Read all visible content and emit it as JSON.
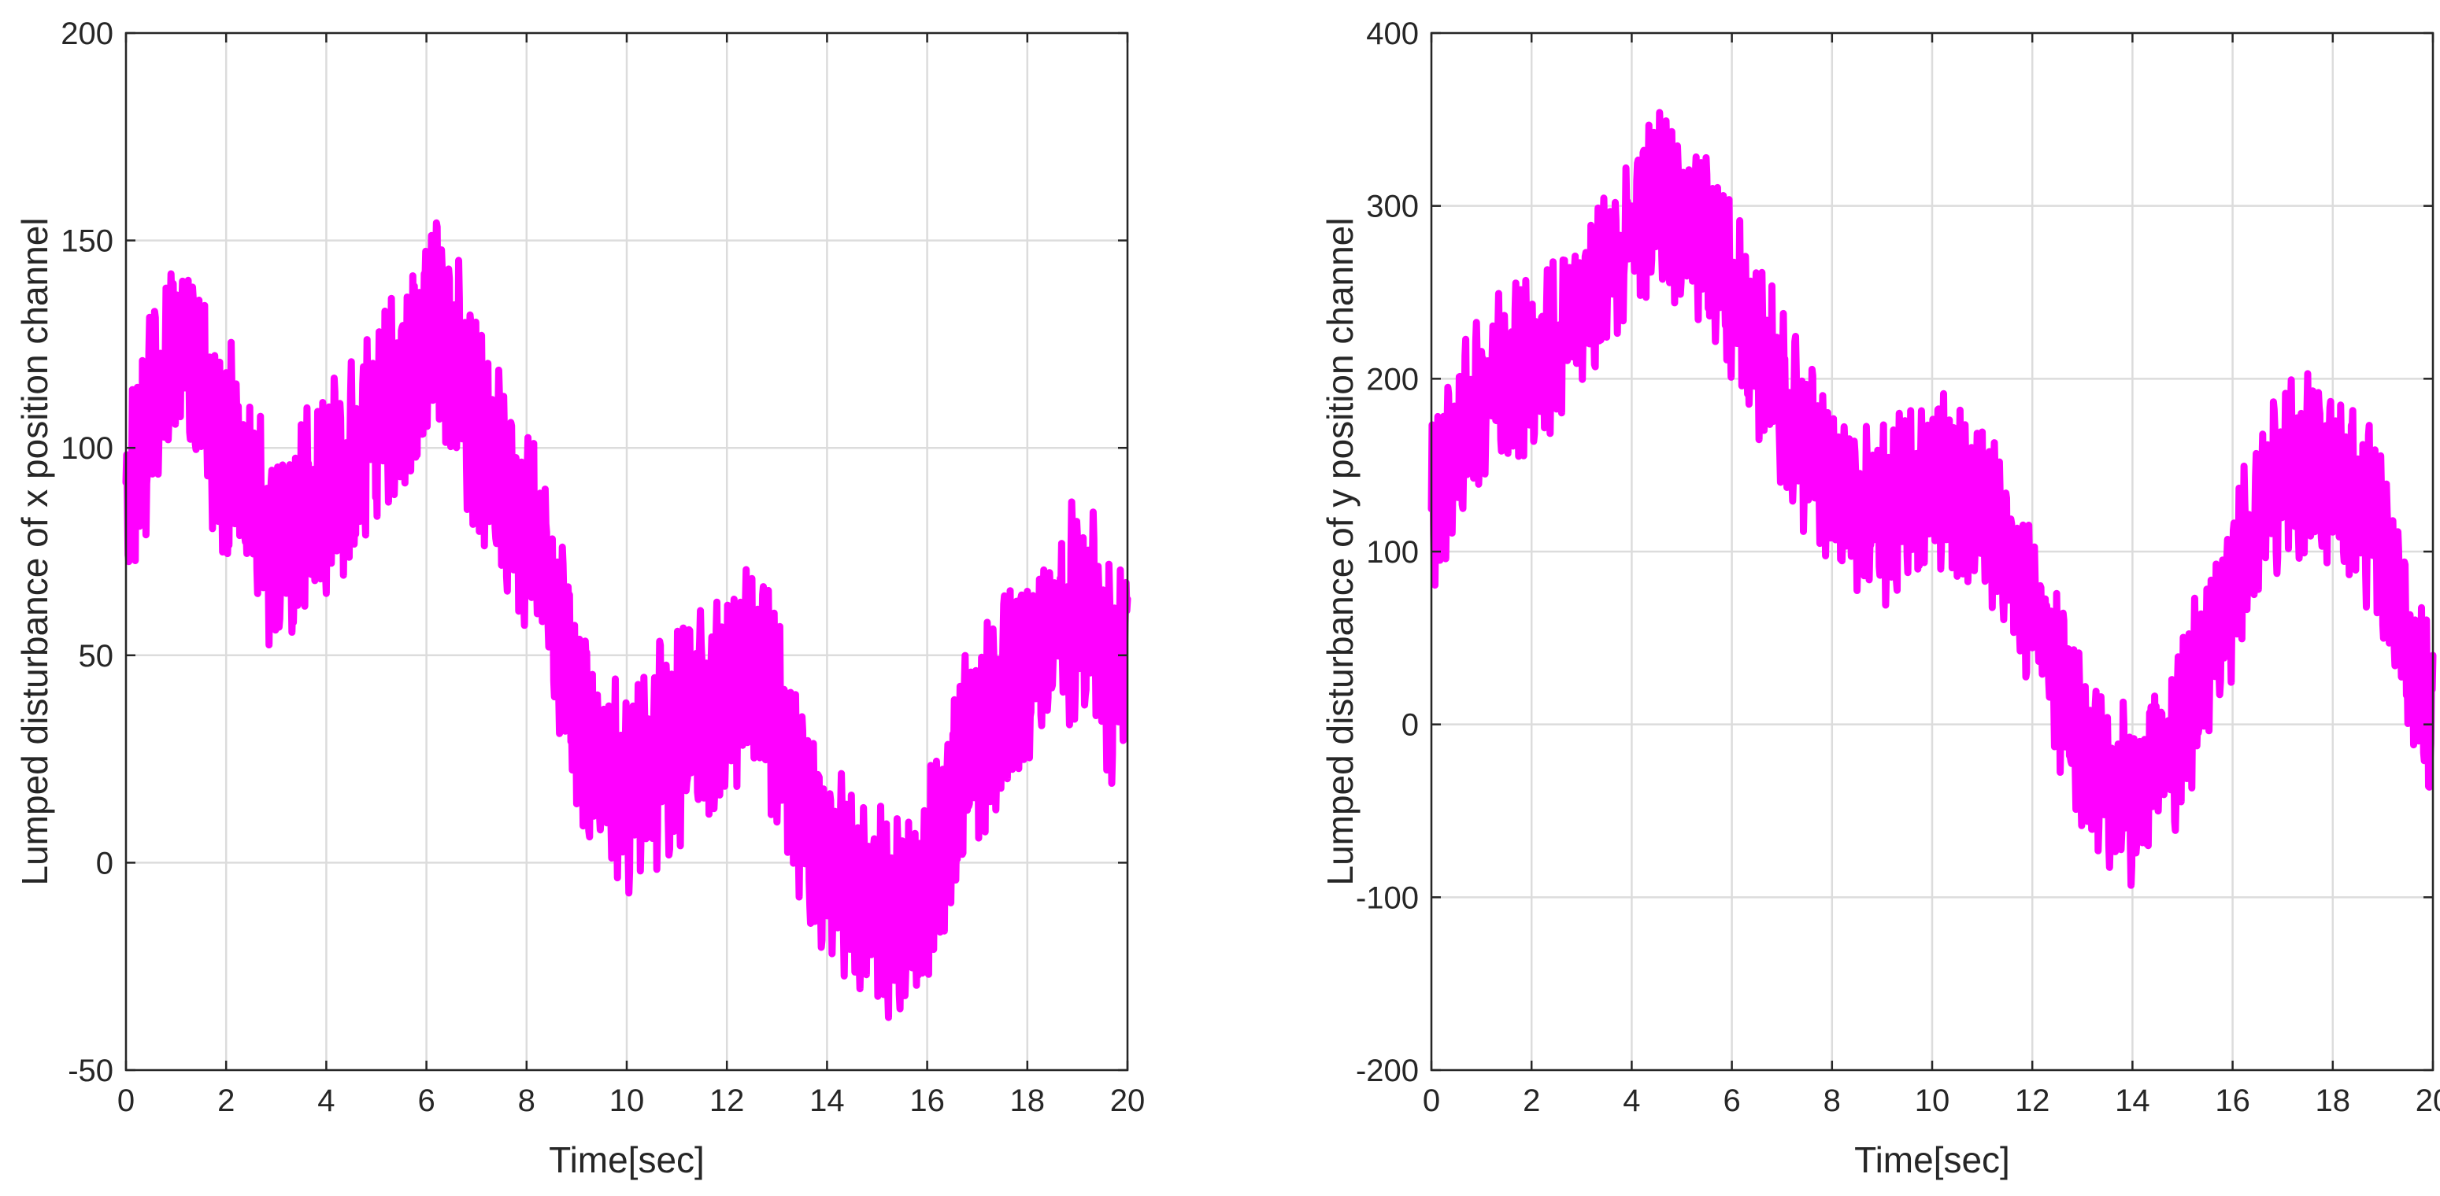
{
  "colors": {
    "series": "#ff00ff",
    "grid": "#dcdcdc",
    "axis": "#262626"
  },
  "chart_data": [
    {
      "type": "line",
      "title": "",
      "xlabel": "Time[sec]",
      "ylabel": "Lumped disturbance of x position channel",
      "xlim": [
        0,
        20
      ],
      "ylim": [
        -50,
        200
      ],
      "xticks": [
        0,
        2,
        4,
        6,
        8,
        10,
        12,
        14,
        16,
        18,
        20
      ],
      "yticks": [
        -50,
        0,
        50,
        100,
        150,
        200
      ],
      "grid": true,
      "legend": "none",
      "series": [
        {
          "color": "#ff00ff",
          "x": [
            0,
            0.25,
            0.5,
            0.75,
            1,
            1.25,
            1.5,
            1.75,
            2,
            2.25,
            2.5,
            2.75,
            3,
            3.25,
            3.5,
            3.75,
            4,
            4.25,
            4.5,
            4.75,
            5,
            5.25,
            5.5,
            5.75,
            6,
            6.25,
            6.5,
            6.75,
            7,
            7.25,
            7.5,
            7.75,
            8,
            8.25,
            8.5,
            8.75,
            9,
            9.25,
            9.5,
            9.75,
            10,
            10.25,
            10.5,
            10.75,
            11,
            11.25,
            11.5,
            11.75,
            12,
            12.25,
            12.5,
            12.75,
            13,
            13.25,
            13.5,
            13.75,
            14,
            14.25,
            14.5,
            14.75,
            15,
            15.25,
            15.5,
            15.75,
            16,
            16.25,
            16.5,
            16.75,
            17,
            17.25,
            17.5,
            17.75,
            18,
            18.25,
            18.5,
            18.75,
            19,
            19.25,
            19.5,
            19.75,
            20
          ],
          "y": [
            85,
            95,
            110,
            120,
            125,
            122,
            115,
            105,
            100,
            95,
            88,
            78,
            72,
            75,
            80,
            85,
            88,
            92,
            95,
            100,
            108,
            112,
            115,
            118,
            128,
            132,
            125,
            115,
            105,
            100,
            95,
            88,
            82,
            75,
            65,
            50,
            40,
            30,
            22,
            18,
            18,
            20,
            25,
            28,
            30,
            35,
            38,
            40,
            42,
            45,
            48,
            42,
            35,
            25,
            15,
            8,
            2,
            -2,
            -5,
            -8,
            -10,
            -12,
            -15,
            -12,
            -5,
            5,
            15,
            25,
            30,
            35,
            40,
            45,
            48,
            52,
            55,
            58,
            62,
            60,
            50,
            45,
            55
          ],
          "noise_amplitude": 28
        }
      ]
    },
    {
      "type": "line",
      "title": "",
      "xlabel": "Time[sec]",
      "ylabel": "Lumped disturbance of y position channel",
      "xlim": [
        0,
        20
      ],
      "ylim": [
        -200,
        400
      ],
      "xticks": [
        0,
        2,
        4,
        6,
        8,
        10,
        12,
        14,
        16,
        18,
        20
      ],
      "yticks": [
        -200,
        -100,
        0,
        100,
        200,
        300,
        400
      ],
      "grid": true,
      "legend": "none",
      "series": [
        {
          "color": "#ff00ff",
          "x": [
            0,
            0.25,
            0.5,
            0.75,
            1,
            1.25,
            1.5,
            1.75,
            2,
            2.25,
            2.5,
            2.75,
            3,
            3.25,
            3.5,
            3.75,
            4,
            4.25,
            4.5,
            4.75,
            5,
            5.25,
            5.5,
            5.75,
            6,
            6.25,
            6.5,
            6.75,
            7,
            7.25,
            7.5,
            7.75,
            8,
            8.25,
            8.5,
            8.75,
            9,
            9.25,
            9.5,
            9.75,
            10,
            10.25,
            10.5,
            10.75,
            11,
            11.25,
            11.5,
            11.75,
            12,
            12.25,
            12.5,
            12.75,
            13,
            13.25,
            13.5,
            13.75,
            14,
            14.25,
            14.5,
            14.75,
            15,
            15.25,
            15.5,
            15.75,
            16,
            16.25,
            16.5,
            16.75,
            17,
            17.25,
            17.5,
            17.75,
            18,
            18.25,
            18.5,
            18.75,
            19,
            19.25,
            19.5,
            19.75,
            20
          ],
          "y": [
            120,
            140,
            160,
            175,
            185,
            195,
            200,
            205,
            210,
            215,
            220,
            230,
            240,
            250,
            260,
            270,
            285,
            295,
            305,
            300,
            295,
            285,
            275,
            265,
            250,
            235,
            220,
            205,
            190,
            175,
            160,
            150,
            140,
            132,
            125,
            120,
            122,
            125,
            128,
            132,
            140,
            145,
            140,
            130,
            120,
            110,
            100,
            85,
            70,
            50,
            30,
            10,
            -10,
            -20,
            -30,
            -35,
            -40,
            -35,
            -25,
            -15,
            0,
            20,
            40,
            60,
            80,
            100,
            120,
            135,
            145,
            150,
            152,
            150,
            145,
            140,
            130,
            118,
            100,
            80,
            50,
            20,
            0
          ],
          "noise_amplitude": 55
        }
      ]
    }
  ]
}
